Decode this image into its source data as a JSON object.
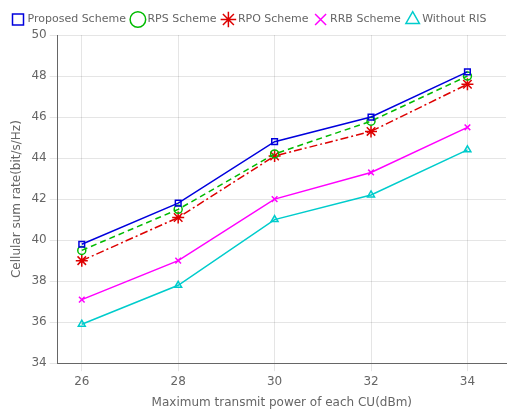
{
  "chart_data": {
    "type": "line",
    "xlabel": "Maximum transmit power of each CU(dBm)",
    "ylabel": "Cellular sum rate(bit/s/Hz)",
    "x": [
      26,
      28,
      30,
      32,
      34
    ],
    "series": [
      {
        "name": "Proposed Scheme",
        "color": "#0000dd",
        "marker": "square",
        "line_style": "solid",
        "values": [
          39.8,
          41.8,
          44.8,
          46.0,
          48.2
        ]
      },
      {
        "name": "RPS Scheme",
        "color": "#00bb00",
        "marker": "circle",
        "line_style": "dashed",
        "values": [
          39.5,
          41.5,
          44.2,
          45.8,
          48.0
        ]
      },
      {
        "name": "RPO Scheme",
        "color": "#dd0000",
        "marker": "star",
        "line_style": "dashdot",
        "values": [
          39.0,
          41.1,
          44.1,
          45.3,
          47.6
        ]
      },
      {
        "name": "RRB Scheme",
        "color": "#ff00ff",
        "marker": "cross",
        "line_style": "solid",
        "values": [
          37.1,
          39.0,
          42.0,
          43.3,
          45.5
        ]
      },
      {
        "name": "Without RIS",
        "color": "#00cccc",
        "marker": "triangle",
        "line_style": "solid",
        "values": [
          35.9,
          37.8,
          41.0,
          42.2,
          44.4
        ]
      }
    ],
    "xlim": [
      25.5,
      34.8
    ],
    "ylim": [
      34,
      50
    ],
    "xticks": [
      26,
      28,
      30,
      32,
      34
    ],
    "yticks": [
      34,
      36,
      38,
      40,
      42,
      44,
      46,
      48,
      50
    ],
    "grid": true,
    "legend": "upper left"
  }
}
